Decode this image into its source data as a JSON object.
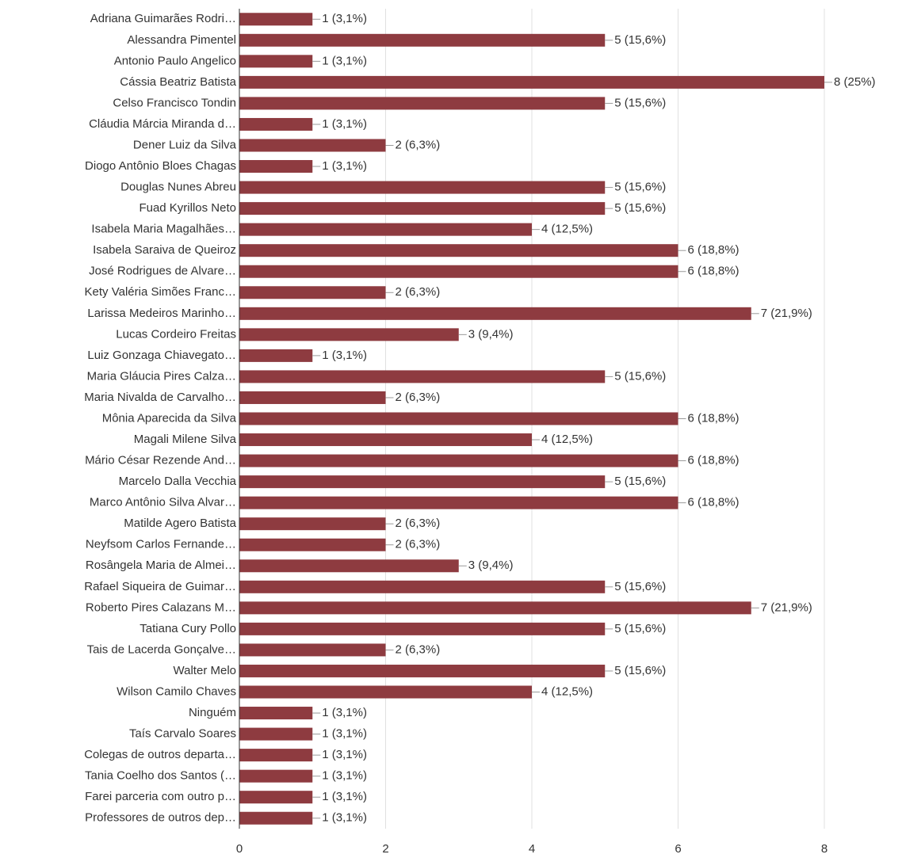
{
  "chart_data": {
    "type": "hbar",
    "color": "#8e3b40",
    "grid": true,
    "categories": [
      "Adriana Guimarães Rodri…",
      "Alessandra Pimentel",
      "Antonio Paulo Angelico",
      "Cássia Beatriz Batista",
      "Celso Francisco Tondin",
      "Cláudia Márcia Miranda d…",
      "Dener Luiz da Silva",
      "Diogo Antônio Bloes Chagas",
      "Douglas Nunes Abreu",
      "Fuad Kyrillos Neto",
      "Isabela Maria Magalhães…",
      "Isabela Saraiva de Queiroz",
      "José Rodrigues de Alvare…",
      "Kety Valéria Simões Franc…",
      "Larissa Medeiros Marinho…",
      "Lucas Cordeiro Freitas",
      "Luiz Gonzaga Chiavegato…",
      "Maria Gláucia Pires Calza…",
      "Maria Nivalda de Carvalho…",
      "Mônia Aparecida da Silva",
      "Magali Milene Silva",
      "Mário César Rezende And…",
      "Marcelo Dalla Vecchia",
      "Marco Antônio Silva Alvar…",
      "Matilde Agero Batista",
      "Neyfsom Carlos Fernande…",
      "Rosângela Maria de Almei…",
      "Rafael Siqueira de Guimar…",
      "Roberto Pires Calazans M…",
      "Tatiana Cury Pollo",
      "Tais de Lacerda Gonçalve…",
      "Walter Melo",
      "Wilson Camilo Chaves",
      "Ninguém",
      "Taís Carvalo Soares",
      "Colegas de outros departa…",
      "Tania Coelho dos Santos (…",
      "Farei parceria com outro p…",
      "Professores de outros dep…"
    ],
    "values": [
      1,
      5,
      1,
      8,
      5,
      1,
      2,
      1,
      5,
      5,
      4,
      6,
      6,
      2,
      7,
      3,
      1,
      5,
      2,
      6,
      4,
      6,
      5,
      6,
      2,
      2,
      3,
      5,
      7,
      5,
      2,
      5,
      4,
      1,
      1,
      1,
      1,
      1,
      1
    ],
    "value_labels": [
      "1 (3,1%)",
      "5 (15,6%)",
      "1 (3,1%)",
      "8 (25%)",
      "5 (15,6%)",
      "1 (3,1%)",
      "2 (6,3%)",
      "1 (3,1%)",
      "5 (15,6%)",
      "5 (15,6%)",
      "4 (12,5%)",
      "6 (18,8%)",
      "6 (18,8%)",
      "2 (6,3%)",
      "7 (21,9%)",
      "3 (9,4%)",
      "1 (3,1%)",
      "5 (15,6%)",
      "2 (6,3%)",
      "6 (18,8%)",
      "4 (12,5%)",
      "6 (18,8%)",
      "5 (15,6%)",
      "6 (18,8%)",
      "2 (6,3%)",
      "2 (6,3%)",
      "3 (9,4%)",
      "5 (15,6%)",
      "7 (21,9%)",
      "5 (15,6%)",
      "2 (6,3%)",
      "5 (15,6%)",
      "4 (12,5%)",
      "1 (3,1%)",
      "1 (3,1%)",
      "1 (3,1%)",
      "1 (3,1%)",
      "1 (3,1%)",
      "1 (3,1%)"
    ],
    "xlim": [
      0,
      8
    ],
    "xticks": [
      0,
      2,
      4,
      6,
      8
    ]
  }
}
